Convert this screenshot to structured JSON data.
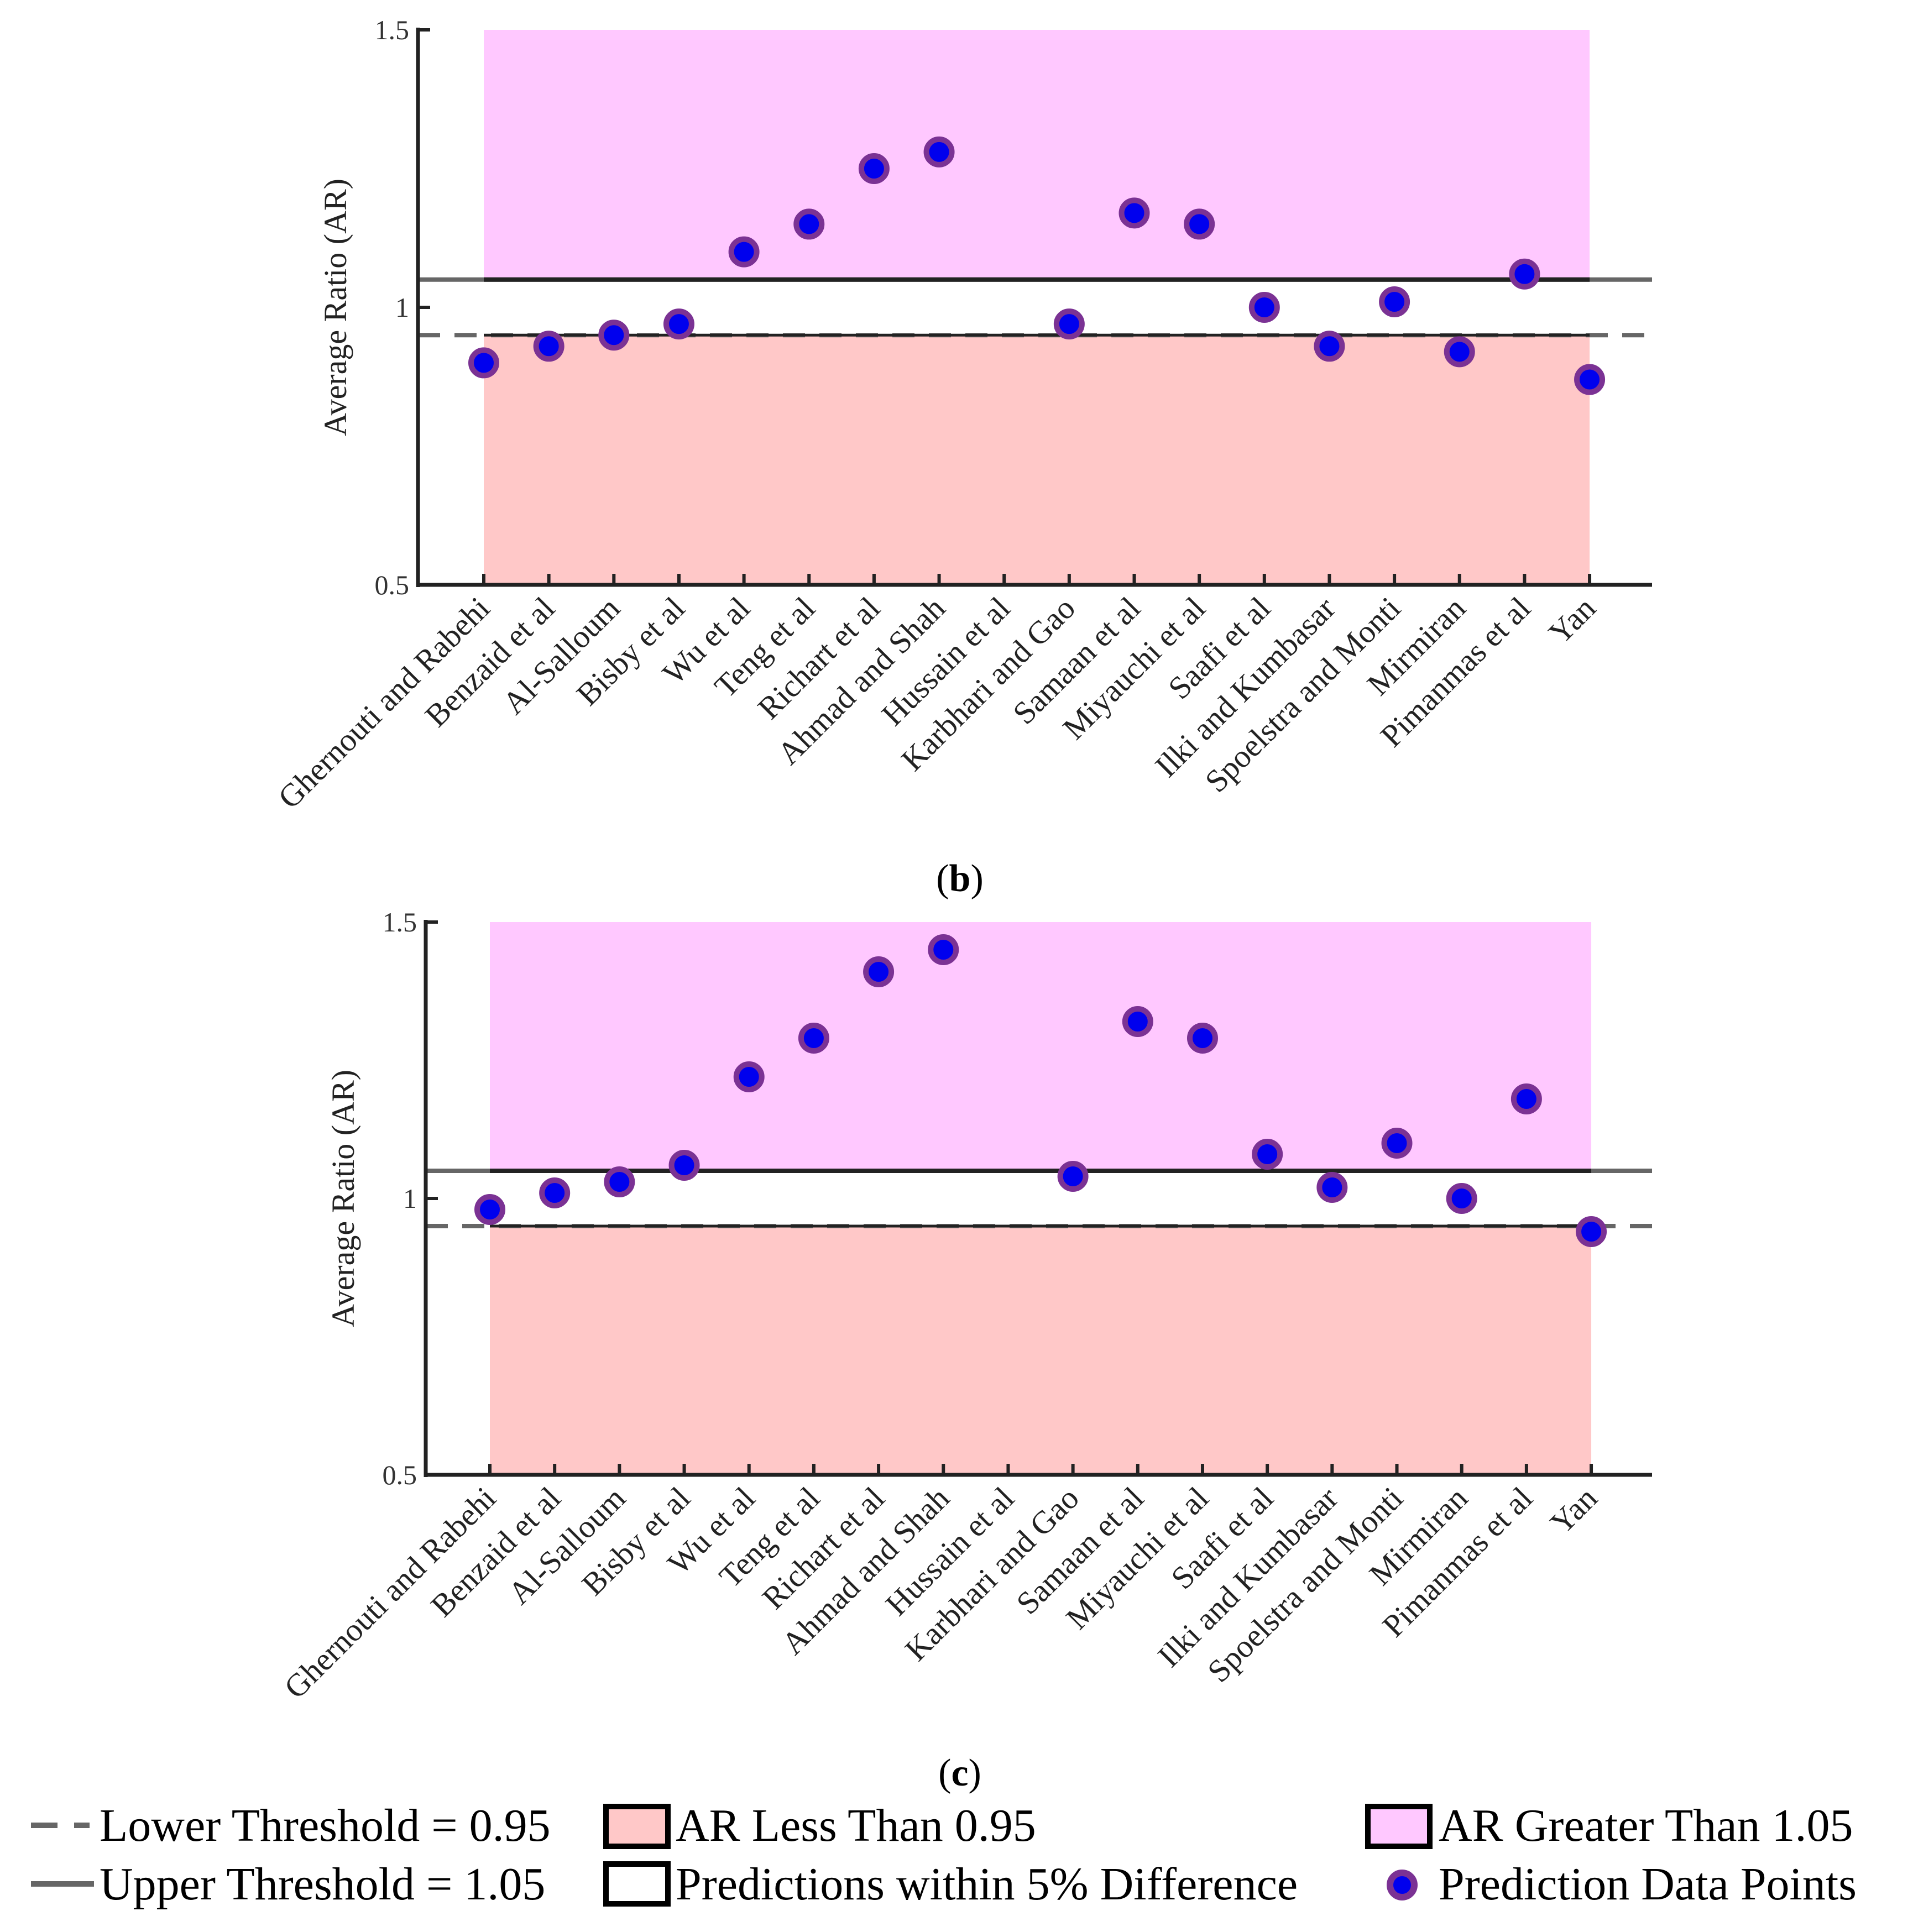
{
  "colors": {
    "upper_band": "#ffc8ff",
    "lower_band": "#ffc8c8",
    "marker_fill": "#0000ee",
    "marker_edge": "#7b3294",
    "threshold": "#666666",
    "axis": "#222222"
  },
  "chart_data": [
    {
      "type": "scatter",
      "panel_label": "b",
      "ylabel": "Average Ratio (AR)",
      "xlabel": "",
      "ylim": [
        0.5,
        1.5
      ],
      "yticks": [
        "0.5",
        "1",
        "1.5"
      ],
      "grid": false,
      "thresholds": {
        "lower": 0.95,
        "upper": 1.05
      },
      "categories": [
        "Ghernouti and Rabehi",
        "Benzaid et al",
        "Al-Salloum",
        "Bisby et al",
        "Wu et al",
        "Teng et al",
        "Richart et al",
        "Ahmad and Shah",
        "Hussain et al",
        "Karbhari and Gao",
        "Samaan et al",
        "Miyauchi et al",
        "Saafi et al",
        "Ilki and Kumbasar",
        "Spoelstra and Monti",
        "Mirmiran",
        "Pimanmas et al",
        "Yan"
      ],
      "values": [
        0.9,
        0.93,
        0.95,
        0.97,
        1.1,
        1.15,
        1.25,
        1.28,
        null,
        0.97,
        1.17,
        1.15,
        1.0,
        0.93,
        1.01,
        0.92,
        1.06,
        0.87
      ]
    },
    {
      "type": "scatter",
      "panel_label": "c",
      "ylabel": "Average Ratio (AR)",
      "xlabel": "",
      "ylim": [
        0.5,
        1.5
      ],
      "yticks": [
        "0.5",
        "1",
        "1.5"
      ],
      "grid": false,
      "thresholds": {
        "lower": 0.95,
        "upper": 1.05
      },
      "categories": [
        "Ghernouti and Rabehi",
        "Benzaid et al",
        "Al-Salloum",
        "Bisby et al",
        "Wu et al",
        "Teng et al",
        "Richart et al",
        "Ahmad and Shah",
        "Hussain et al",
        "Karbhari and Gao",
        "Samaan et al",
        "Miyauchi et al",
        "Saafi et al",
        "Ilki and Kumbasar",
        "Spoelstra and Monti",
        "Mirmiran",
        "Pimanmas et al",
        "Yan"
      ],
      "values": [
        0.98,
        1.01,
        1.03,
        1.06,
        1.22,
        1.29,
        1.41,
        1.45,
        null,
        1.04,
        1.32,
        1.29,
        1.08,
        1.02,
        1.1,
        1.0,
        1.18,
        0.94
      ]
    }
  ],
  "legend": {
    "placement": "bottom",
    "items": [
      {
        "key": "lower",
        "label": "Lower Threshold = 0.95"
      },
      {
        "key": "less",
        "label": "AR Less Than 0.95"
      },
      {
        "key": "greater",
        "label": "AR Greater Than 1.05"
      },
      {
        "key": "upper",
        "label": "Upper Threshold = 1.05"
      },
      {
        "key": "within",
        "label": "Predictions within 5% Difference"
      },
      {
        "key": "points",
        "label": "Prediction Data Points"
      }
    ]
  }
}
